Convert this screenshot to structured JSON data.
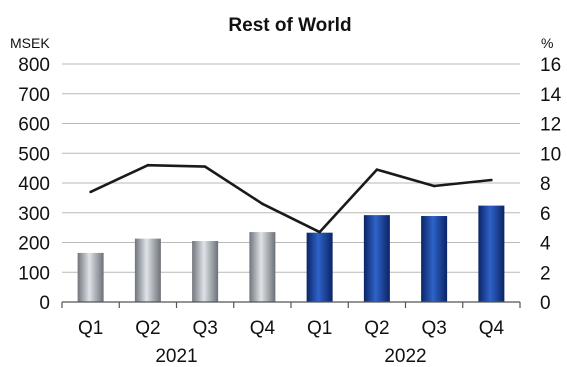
{
  "chart_data": {
    "type": "bar",
    "title": "Rest of World",
    "left_unit": "MSEK",
    "right_unit": "%",
    "categories": [
      "Q1",
      "Q2",
      "Q3",
      "Q4",
      "Q1",
      "Q2",
      "Q3",
      "Q4"
    ],
    "groups": [
      {
        "label": "2021",
        "from": 0,
        "to": 3
      },
      {
        "label": "2022",
        "from": 4,
        "to": 7
      }
    ],
    "series": [
      {
        "type": "bar",
        "axis": "left",
        "values": [
          165,
          213,
          205,
          235,
          233,
          292,
          289,
          324
        ],
        "colors": [
          "#8c9299",
          "#8c9299",
          "#8c9299",
          "#8c9299",
          "#0f2f7a",
          "#0f2f7a",
          "#0f2f7a",
          "#0f2f7a"
        ]
      },
      {
        "type": "line",
        "axis": "right",
        "values": [
          7.4,
          9.2,
          9.1,
          6.6,
          4.7,
          8.9,
          7.8,
          8.2
        ],
        "color": "#1a1a1a"
      }
    ],
    "y_left": {
      "min": 0,
      "max": 800,
      "ticks": [
        0,
        100,
        200,
        300,
        400,
        500,
        600,
        700,
        800
      ]
    },
    "y_right": {
      "min": 0,
      "max": 16,
      "ticks": [
        0,
        2,
        4,
        6,
        8,
        10,
        12,
        14,
        16
      ]
    },
    "grid": true,
    "legend": "none"
  }
}
